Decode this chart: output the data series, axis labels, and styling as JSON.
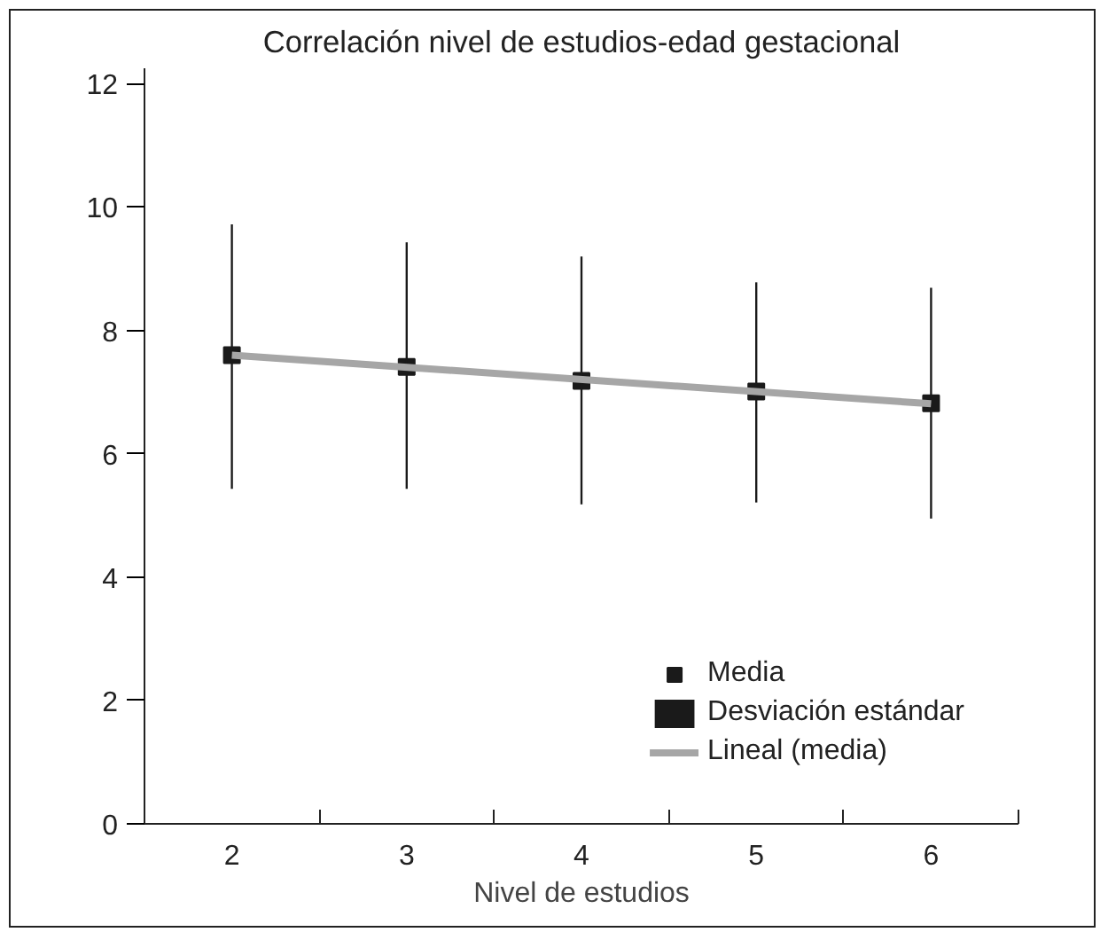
{
  "chart_data": {
    "type": "scatter",
    "title": "Correlación nivel de estudios-edad gestacional",
    "xlabel": "Nivel de estudios",
    "x": [
      2,
      3,
      4,
      5,
      6
    ],
    "xlim": [
      1.5,
      6.5
    ],
    "xticks": [
      {
        "value": 1.5,
        "label": null
      },
      2,
      {
        "value": 2.5,
        "label": null
      },
      3,
      {
        "value": 3.5,
        "label": null
      },
      4,
      {
        "value": 4.5,
        "label": null
      },
      5,
      {
        "value": 5.5,
        "label": null
      },
      6,
      {
        "value": 6.5,
        "label": null
      }
    ],
    "ylim": [
      0,
      12.25
    ],
    "yticks": [
      0,
      2,
      4,
      6,
      8,
      10,
      12
    ],
    "grid": false,
    "legend": "bottom right",
    "series": [
      {
        "name": "Media",
        "marker": "square",
        "color": "#1a1a1a",
        "values": [
          7.6,
          7.41,
          7.18,
          7.01,
          6.82
        ]
      },
      {
        "name": "Desviación estándar",
        "type": "bar",
        "color": "#1a1a1a",
        "base": [
          5.43,
          5.43,
          5.18,
          5.21,
          4.95
        ],
        "values": [
          4.29,
          4.0,
          4.02,
          3.57,
          3.74
        ]
      },
      {
        "name": "Lineal (media)",
        "type": "line",
        "color": "#a6a6a6",
        "x": [
          2,
          6
        ],
        "values": [
          7.6,
          6.81
        ]
      }
    ]
  }
}
